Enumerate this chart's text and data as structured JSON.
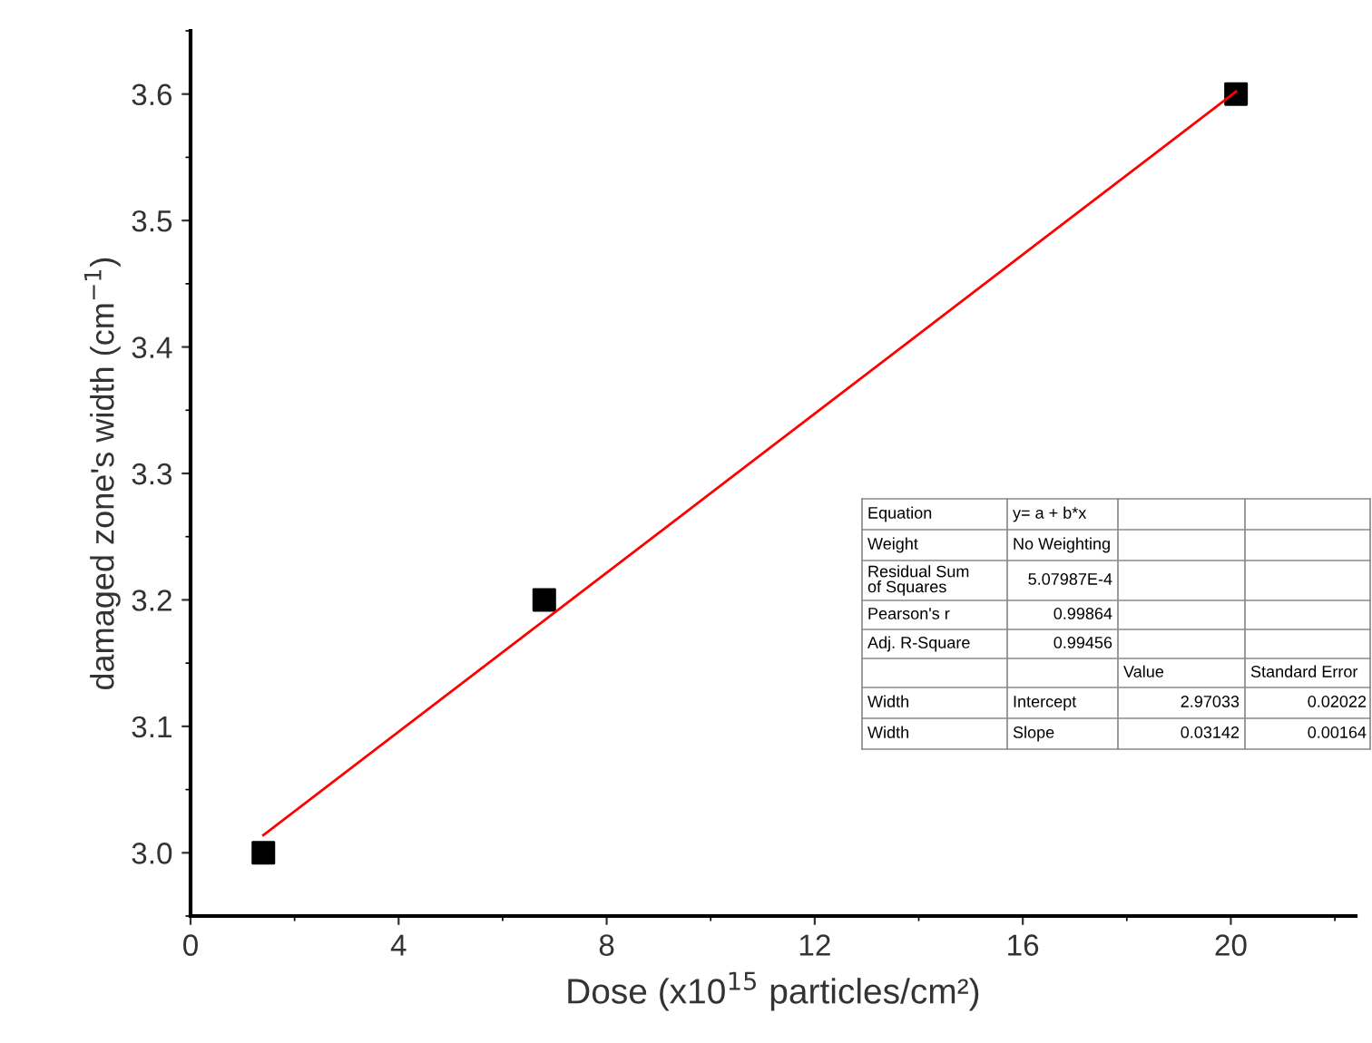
{
  "chart_data": {
    "type": "scatter",
    "xlabel": "Dose (x10$^{15}$ particles/cm²)",
    "ylabel": "damaged zone's width (cm$^{−1}$)",
    "series": [
      {
        "color": "#000000",
        "marker": "square",
        "x": [
          1.4,
          6.8,
          20.1
        ],
        "values": [
          3.0,
          3.2,
          3.6
        ]
      },
      {
        "type": "line",
        "color": "#ff0000",
        "marker": "none",
        "line_style": "solid",
        "x": [
          1.4,
          20.1
        ],
        "values": [
          3.014,
          3.602
        ]
      }
    ],
    "xlim": [
      0,
      22.4
    ],
    "xticks": [
      0,
      4,
      8,
      12,
      16,
      20
    ],
    "ylim": [
      2.95,
      3.65
    ],
    "yticks": [
      {
        "value": 3.0,
        "label": "3.0"
      },
      3.1,
      3.2,
      3.3,
      3.4,
      3.5,
      3.6
    ],
    "legend": false,
    "annotations": [
      "Equation",
      "y= a + b*x",
      "Weight",
      "No Weighting",
      "Residual Sum\nof Squares",
      "5.07987E-4",
      "Pearson's r",
      "0.99864",
      "Adj. R-Square",
      "0.99456",
      "Value",
      "Standard Error",
      "Width",
      "Intercept",
      "2.97033",
      "0.02022",
      "Width",
      "Slope",
      "0.03142",
      "0.00164"
    ]
  }
}
